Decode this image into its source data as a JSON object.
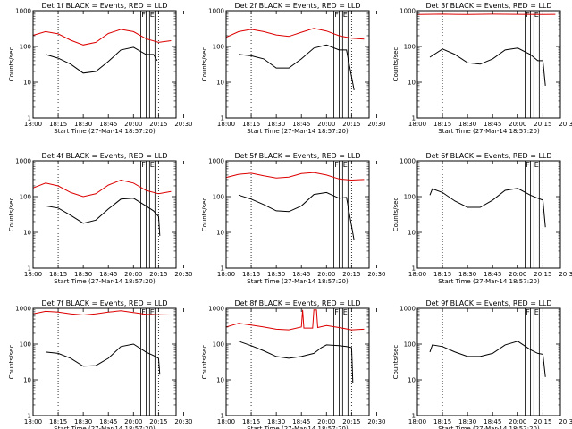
{
  "figure": {
    "start_time_label": "Start Time (27-Mar-14 18:57:20)",
    "ylabel": "Counts/sec",
    "x_ticks": [
      "18:00",
      "18:15",
      "18:30",
      "18:45",
      "20:00",
      "20:15",
      "20:30"
    ],
    "y_ticks": [
      "1",
      "10",
      "100",
      "1000"
    ],
    "colors": {
      "events": "#000000",
      "lld": "#dd0000",
      "background": "#ffffff"
    }
  },
  "chart_data": [
    {
      "type": "line",
      "title": "Det 1f BLACK = Events, RED = LLD",
      "xlabel": "Start Time (27-Mar-14 18:57:20)",
      "ylabel": "Counts/sec",
      "x_ticks": [
        "18:00",
        "18:15",
        "18:30",
        "18:45",
        "20:00",
        "20:15",
        "20:30"
      ],
      "y_scale": "log",
      "ylim": [
        1,
        1000
      ],
      "markers": {
        "dotted_lines_at_tick": [
          1,
          5
        ],
        "boxes": [
          "F",
          "E"
        ]
      },
      "series": [
        {
          "name": "Events",
          "color": "black",
          "points": [
            [
              0.5,
              60
            ],
            [
              1,
              47
            ],
            [
              1.5,
              32
            ],
            [
              2,
              18
            ],
            [
              2.5,
              20
            ],
            [
              3,
              38
            ],
            [
              3.5,
              80
            ],
            [
              4,
              95
            ],
            [
              4.5,
              60
            ],
            [
              4.8,
              60
            ],
            [
              4.95,
              40
            ]
          ]
        },
        {
          "name": "LLD",
          "color": "red",
          "points": [
            [
              0,
              205
            ],
            [
              0.5,
              260
            ],
            [
              1,
              225
            ],
            [
              1.5,
              150
            ],
            [
              2,
              110
            ],
            [
              2.5,
              130
            ],
            [
              3,
              230
            ],
            [
              3.5,
              300
            ],
            [
              4,
              260
            ],
            [
              4.5,
              165
            ],
            [
              5,
              130
            ],
            [
              5.5,
              145
            ]
          ]
        }
      ]
    },
    {
      "type": "line",
      "title": "Det 2f BLACK = Events, RED = LLD",
      "xlabel": "Start Time (27-Mar-14 18:57:20)",
      "ylabel": "Counts/sec",
      "x_ticks": [
        "18:00",
        "18:15",
        "18:30",
        "18:45",
        "20:00",
        "20:15",
        "20:30"
      ],
      "y_scale": "log",
      "ylim": [
        1,
        1000
      ],
      "markers": {
        "dotted_lines_at_tick": [
          1,
          5
        ],
        "boxes": [
          "F",
          "E"
        ]
      },
      "series": [
        {
          "name": "Events",
          "color": "black",
          "points": [
            [
              0.5,
              60
            ],
            [
              1,
              55
            ],
            [
              1.5,
              45
            ],
            [
              2,
              25
            ],
            [
              2.5,
              25
            ],
            [
              3,
              45
            ],
            [
              3.5,
              90
            ],
            [
              4,
              110
            ],
            [
              4.5,
              80
            ],
            [
              4.8,
              80
            ],
            [
              5.1,
              6
            ]
          ]
        },
        {
          "name": "LLD",
          "color": "red",
          "points": [
            [
              0,
              180
            ],
            [
              0.5,
              260
            ],
            [
              1,
              300
            ],
            [
              1.5,
              260
            ],
            [
              2,
              210
            ],
            [
              2.5,
              190
            ],
            [
              3,
              250
            ],
            [
              3.5,
              320
            ],
            [
              4,
              270
            ],
            [
              4.5,
              200
            ],
            [
              5,
              170
            ],
            [
              5.5,
              160
            ]
          ]
        }
      ]
    },
    {
      "type": "line",
      "title": "Det 3f BLACK = Events, RED = LLD",
      "xlabel": "Start Time (27-Mar-14 18:57:20)",
      "ylabel": "Counts/sec",
      "x_ticks": [
        "18:00",
        "18:15",
        "18:30",
        "18:45",
        "20:00",
        "20:15",
        "20:30"
      ],
      "y_scale": "log",
      "ylim": [
        1,
        1000
      ],
      "markers": {
        "dotted_lines_at_tick": [
          1,
          5
        ],
        "boxes": [
          "F",
          "E"
        ]
      },
      "series": [
        {
          "name": "Events",
          "color": "black",
          "points": [
            [
              0.5,
              50
            ],
            [
              1,
              85
            ],
            [
              1.5,
              60
            ],
            [
              2,
              35
            ],
            [
              2.5,
              32
            ],
            [
              3,
              45
            ],
            [
              3.5,
              80
            ],
            [
              4,
              90
            ],
            [
              4.5,
              60
            ],
            [
              4.8,
              40
            ],
            [
              5,
              40
            ],
            [
              5.1,
              8
            ]
          ]
        },
        {
          "name": "LLD",
          "color": "red",
          "points": [
            [
              0,
              780
            ],
            [
              1,
              800
            ],
            [
              2,
              780
            ],
            [
              3,
              800
            ],
            [
              4,
              790
            ],
            [
              5,
              780
            ],
            [
              5.5,
              790
            ]
          ]
        }
      ]
    },
    {
      "type": "line",
      "title": "Det 4f BLACK = Events, RED = LLD",
      "xlabel": "Start Time (27-Mar-14 18:57:20)",
      "ylabel": "Counts/sec",
      "x_ticks": [
        "18:00",
        "18:15",
        "18:30",
        "18:45",
        "20:00",
        "20:15",
        "20:30"
      ],
      "y_scale": "log",
      "ylim": [
        1,
        1000
      ],
      "markers": {
        "dotted_lines_at_tick": [
          1,
          5
        ],
        "boxes": [
          "F",
          "E"
        ]
      },
      "series": [
        {
          "name": "Events",
          "color": "black",
          "points": [
            [
              0.5,
              55
            ],
            [
              1,
              48
            ],
            [
              1.5,
              30
            ],
            [
              2,
              18
            ],
            [
              2.5,
              22
            ],
            [
              3,
              45
            ],
            [
              3.5,
              85
            ],
            [
              4,
              90
            ],
            [
              4.5,
              55
            ],
            [
              4.8,
              40
            ],
            [
              5,
              28
            ],
            [
              5.05,
              8
            ]
          ]
        },
        {
          "name": "LLD",
          "color": "red",
          "points": [
            [
              0,
              175
            ],
            [
              0.5,
              240
            ],
            [
              1,
              200
            ],
            [
              1.5,
              130
            ],
            [
              2,
              100
            ],
            [
              2.5,
              120
            ],
            [
              3,
              210
            ],
            [
              3.5,
              290
            ],
            [
              4,
              240
            ],
            [
              4.5,
              150
            ],
            [
              5,
              120
            ],
            [
              5.5,
              140
            ]
          ]
        }
      ]
    },
    {
      "type": "line",
      "title": "Det 5f BLACK = Events, RED = LLD",
      "xlabel": "Start Time (27-Mar-14 18:57:20)",
      "ylabel": "Counts/sec",
      "x_ticks": [
        "18:00",
        "18:15",
        "18:30",
        "18:45",
        "20:00",
        "20:15",
        "20:30"
      ],
      "y_scale": "log",
      "ylim": [
        1,
        1000
      ],
      "markers": {
        "dotted_lines_at_tick": [
          1,
          5
        ],
        "boxes": [
          "F",
          "E"
        ]
      },
      "series": [
        {
          "name": "Events",
          "color": "black",
          "points": [
            [
              0.5,
              110
            ],
            [
              1,
              85
            ],
            [
              1.5,
              60
            ],
            [
              2,
              40
            ],
            [
              2.5,
              38
            ],
            [
              3,
              55
            ],
            [
              3.5,
              115
            ],
            [
              4,
              130
            ],
            [
              4.5,
              90
            ],
            [
              4.8,
              95
            ],
            [
              5.1,
              6
            ]
          ]
        },
        {
          "name": "LLD",
          "color": "red",
          "points": [
            [
              0,
              340
            ],
            [
              0.5,
              420
            ],
            [
              1,
              450
            ],
            [
              1.5,
              380
            ],
            [
              2,
              330
            ],
            [
              2.5,
              350
            ],
            [
              3,
              440
            ],
            [
              3.5,
              470
            ],
            [
              4,
              400
            ],
            [
              4.5,
              310
            ],
            [
              5,
              290
            ],
            [
              5.5,
              300
            ]
          ]
        }
      ]
    },
    {
      "type": "line",
      "title": "Det 6f BLACK = Events, RED = LLD",
      "xlabel": "Start Time (27-Mar-14 18:57:20)",
      "ylabel": "Counts/sec",
      "x_ticks": [
        "18:00",
        "18:15",
        "18:30",
        "18:45",
        "20:00",
        "20:15",
        "20:30"
      ],
      "y_scale": "log",
      "ylim": [
        1,
        1000
      ],
      "markers": {
        "dotted_lines_at_tick": [
          1,
          5
        ],
        "boxes": [
          "F",
          "E"
        ]
      },
      "series": [
        {
          "name": "Events",
          "color": "black",
          "points": [
            [
              0.5,
              110
            ],
            [
              0.6,
              165
            ],
            [
              1,
              130
            ],
            [
              1.5,
              75
            ],
            [
              2,
              50
            ],
            [
              2.5,
              50
            ],
            [
              3,
              80
            ],
            [
              3.5,
              150
            ],
            [
              4,
              170
            ],
            [
              4.5,
              110
            ],
            [
              4.8,
              90
            ],
            [
              5,
              80
            ],
            [
              5.1,
              14
            ]
          ]
        }
      ]
    },
    {
      "type": "line",
      "title": "Det 7f BLACK = Events, RED = LLD",
      "xlabel": "Start Time (27-Mar-14 18:57:20)",
      "ylabel": "Counts/sec",
      "x_ticks": [
        "18:00",
        "18:15",
        "18:30",
        "18:45",
        "20:00",
        "20:15",
        "20:30"
      ],
      "y_scale": "log",
      "ylim": [
        1,
        1000
      ],
      "markers": {
        "dotted_lines_at_tick": [
          1,
          5
        ],
        "boxes": [
          "F",
          "E"
        ]
      },
      "series": [
        {
          "name": "Events",
          "color": "black",
          "points": [
            [
              0.5,
              60
            ],
            [
              1,
              55
            ],
            [
              1.5,
              40
            ],
            [
              2,
              24
            ],
            [
              2.5,
              25
            ],
            [
              3,
              40
            ],
            [
              3.5,
              85
            ],
            [
              4,
              100
            ],
            [
              4.5,
              60
            ],
            [
              4.8,
              48
            ],
            [
              5,
              40
            ],
            [
              5.05,
              14
            ]
          ]
        },
        {
          "name": "LLD",
          "color": "red",
          "points": [
            [
              0,
              700
            ],
            [
              0.5,
              820
            ],
            [
              1,
              780
            ],
            [
              1.5,
              700
            ],
            [
              2,
              650
            ],
            [
              2.5,
              700
            ],
            [
              3,
              780
            ],
            [
              3.5,
              850
            ],
            [
              4,
              760
            ],
            [
              4.5,
              680
            ],
            [
              5,
              660
            ],
            [
              5.5,
              650
            ]
          ]
        }
      ]
    },
    {
      "type": "line",
      "title": "Det 8f BLACK = Events, RED = LLD",
      "xlabel": "Start Time (27-Mar-14 18:57:20)",
      "ylabel": "Counts/sec",
      "x_ticks": [
        "18:00",
        "18:15",
        "18:30",
        "18:45",
        "20:00",
        "20:15",
        "20:30"
      ],
      "y_scale": "log",
      "ylim": [
        1,
        1000
      ],
      "markers": {
        "dotted_lines_at_tick": [
          1,
          5
        ],
        "boxes": [
          "F",
          "E"
        ]
      },
      "series": [
        {
          "name": "Events",
          "color": "black",
          "points": [
            [
              0.5,
              120
            ],
            [
              1,
              90
            ],
            [
              1.5,
              65
            ],
            [
              2,
              45
            ],
            [
              2.5,
              40
            ],
            [
              3,
              45
            ],
            [
              3.5,
              55
            ],
            [
              3.8,
              80
            ],
            [
              4,
              95
            ],
            [
              4.5,
              90
            ],
            [
              4.8,
              85
            ],
            [
              5,
              80
            ],
            [
              5.05,
              8
            ]
          ]
        },
        {
          "name": "LLD",
          "color": "red",
          "points": [
            [
              0,
              300
            ],
            [
              0.5,
              380
            ],
            [
              1,
              340
            ],
            [
              1.5,
              300
            ],
            [
              2,
              260
            ],
            [
              2.5,
              250
            ],
            [
              3,
              300
            ],
            [
              3.05,
              900
            ],
            [
              3.1,
              280
            ],
            [
              3.45,
              280
            ],
            [
              3.5,
              900
            ],
            [
              3.6,
              900
            ],
            [
              3.65,
              290
            ],
            [
              4,
              330
            ],
            [
              4.5,
              290
            ],
            [
              5,
              250
            ],
            [
              5.5,
              260
            ]
          ]
        }
      ]
    },
    {
      "type": "line",
      "title": "Det 9f BLACK = Events, RED = LLD",
      "xlabel": "Start Time (27-Mar-14 18:57:20)",
      "ylabel": "Counts/sec",
      "x_ticks": [
        "18:00",
        "18:15",
        "18:30",
        "18:45",
        "20:00",
        "20:15",
        "20:30"
      ],
      "y_scale": "log",
      "ylim": [
        1,
        1000
      ],
      "markers": {
        "dotted_lines_at_tick": [
          1,
          5
        ],
        "boxes": [
          "F",
          "E"
        ]
      },
      "series": [
        {
          "name": "Events",
          "color": "black",
          "points": [
            [
              0.5,
              60
            ],
            [
              0.6,
              95
            ],
            [
              1,
              85
            ],
            [
              1.5,
              60
            ],
            [
              2,
              45
            ],
            [
              2.5,
              45
            ],
            [
              3,
              55
            ],
            [
              3.5,
              95
            ],
            [
              4,
              120
            ],
            [
              4.5,
              70
            ],
            [
              4.8,
              55
            ],
            [
              5,
              52
            ],
            [
              5.1,
              12
            ]
          ]
        }
      ]
    }
  ]
}
